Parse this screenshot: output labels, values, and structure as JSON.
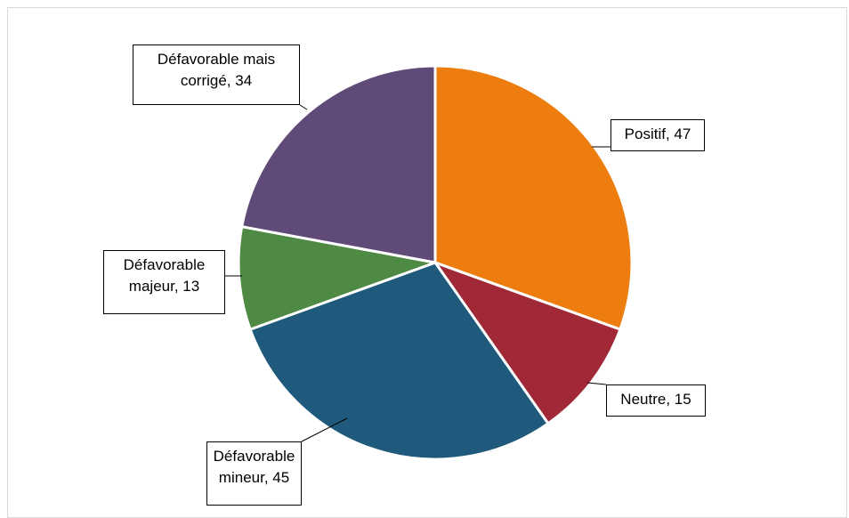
{
  "chart_data": {
    "type": "pie",
    "values": [
      47,
      15,
      45,
      13,
      34
    ],
    "value_labels": [
      "Positif, 47",
      "Neutre, 15",
      "Défavorable mineur, 45",
      "Défavorable majeur, 13",
      "Défavorable mais corrigé, 34"
    ],
    "colors": [
      "#ED7D0E",
      "#A12837",
      "#1F5A7C",
      "#4E8A43",
      "#5F4A78"
    ]
  }
}
